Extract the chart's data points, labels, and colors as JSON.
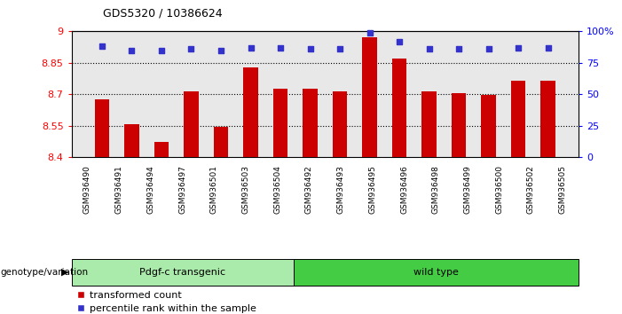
{
  "title": "GDS5320 / 10386624",
  "samples": [
    "GSM936490",
    "GSM936491",
    "GSM936494",
    "GSM936497",
    "GSM936501",
    "GSM936503",
    "GSM936504",
    "GSM936492",
    "GSM936493",
    "GSM936495",
    "GSM936496",
    "GSM936498",
    "GSM936499",
    "GSM936500",
    "GSM936502",
    "GSM936505"
  ],
  "bar_values": [
    8.675,
    8.555,
    8.47,
    8.715,
    8.545,
    8.83,
    8.725,
    8.725,
    8.715,
    8.97,
    8.87,
    8.715,
    8.705,
    8.695,
    8.765,
    8.765
  ],
  "percentile_values": [
    88,
    85,
    85,
    86,
    85,
    87,
    87,
    86,
    86,
    99,
    92,
    86,
    86,
    86,
    87,
    87
  ],
  "bar_color": "#cc0000",
  "percentile_color": "#3333cc",
  "ylim_left": [
    8.4,
    9.0
  ],
  "ylim_right": [
    0,
    100
  ],
  "yticks_left": [
    8.4,
    8.55,
    8.7,
    8.85,
    9.0
  ],
  "yticks_left_labels": [
    "8.4",
    "8.55",
    "8.7",
    "8.85",
    "9"
  ],
  "yticks_right": [
    0,
    25,
    50,
    75,
    100
  ],
  "yticks_right_labels": [
    "0",
    "25",
    "50",
    "75",
    "100%"
  ],
  "hlines": [
    8.55,
    8.7,
    8.85
  ],
  "group1_label": "Pdgf-c transgenic",
  "group1_count": 7,
  "group2_label": "wild type",
  "group2_count": 9,
  "group1_bg": "#aaeaaa",
  "group2_bg": "#44cc44",
  "genotype_label": "genotype/variation",
  "legend_bar_label": "transformed count",
  "legend_pct_label": "percentile rank within the sample",
  "bar_width": 0.5,
  "plot_bg": "#e8e8e8"
}
